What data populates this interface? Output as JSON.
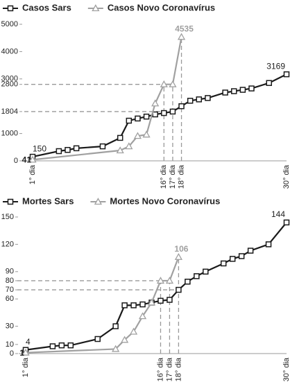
{
  "chart_data": [
    {
      "type": "line",
      "xlim": [
        1,
        30
      ],
      "xticks": [
        {
          "value": 1,
          "label": "1° dia"
        },
        {
          "value": 16,
          "label": "16° dia"
        },
        {
          "value": 17,
          "label": "17° dia"
        },
        {
          "value": 18,
          "label": "18° dia"
        },
        {
          "value": 30,
          "label": "30° dia"
        }
      ],
      "ylim": [
        0,
        5000
      ],
      "yticks": [
        0,
        1000,
        1804,
        2800,
        3000,
        4000,
        5000
      ],
      "guides": [
        [
          17,
          2800
        ],
        [
          17,
          1804
        ]
      ],
      "series": [
        {
          "name": "Casos Sars",
          "color": "#1a1a1a",
          "marker": "square",
          "x": [
            1,
            4,
            5,
            6,
            9,
            11,
            12,
            13,
            14,
            15,
            16,
            17,
            18,
            19,
            20,
            21,
            23,
            24,
            25,
            26,
            28,
            30
          ],
          "values": [
            150,
            355,
            400,
            460,
            530,
            840,
            1470,
            1550,
            1620,
            1700,
            1750,
            1804,
            2000,
            2200,
            2250,
            2300,
            2500,
            2550,
            2600,
            2650,
            2850,
            3169
          ]
        },
        {
          "name": "Casos Novo Coronavírus",
          "color": "#a0a0a0",
          "marker": "triangle",
          "x": [
            1,
            11,
            12,
            13,
            14,
            15,
            16,
            17,
            18
          ],
          "values": [
            41,
            380,
            530,
            910,
            960,
            2100,
            2800,
            2800,
            4535
          ]
        }
      ]
    },
    {
      "type": "line",
      "xlim": [
        1,
        30
      ],
      "xticks": [
        {
          "value": 1,
          "label": "1° dia"
        },
        {
          "value": 16,
          "label": "16° dia"
        },
        {
          "value": 17,
          "label": "17° dia"
        },
        {
          "value": 18,
          "label": "18° dia"
        },
        {
          "value": 30,
          "label": "30° dia"
        }
      ],
      "ylim": [
        0,
        150
      ],
      "yticks": [
        0,
        10,
        30,
        60,
        70,
        80,
        90,
        120,
        150
      ],
      "guides": [
        [
          16,
          80
        ],
        [
          18,
          70
        ]
      ],
      "series": [
        {
          "name": "Mortes Sars",
          "color": "#1a1a1a",
          "marker": "square",
          "x": [
            1,
            4,
            5,
            6,
            9,
            11,
            12,
            13,
            14,
            15,
            16,
            17,
            18,
            19,
            20,
            21,
            23,
            24,
            25,
            26,
            28,
            30
          ],
          "values": [
            4,
            8,
            9,
            9,
            16,
            30,
            53,
            53,
            54,
            56,
            58,
            59,
            70,
            79,
            85,
            90,
            99,
            104,
            107,
            113,
            120,
            144
          ]
        },
        {
          "name": "Mortes Novo Coronavírus",
          "color": "#a0a0a0",
          "marker": "triangle",
          "x": [
            1,
            11,
            12,
            13,
            14,
            15,
            16,
            17,
            18
          ],
          "values": [
            1,
            5,
            15,
            24,
            41,
            56,
            80,
            80,
            106
          ]
        }
      ]
    }
  ]
}
